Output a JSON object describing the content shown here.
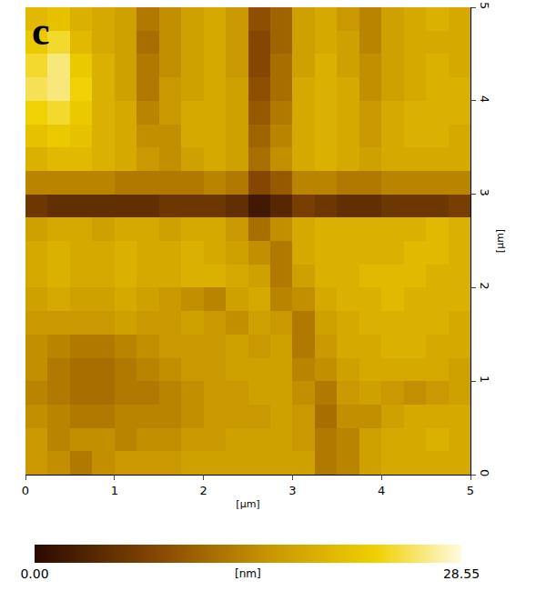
{
  "chart_data": {
    "type": "heatmap",
    "panel_label": "c",
    "xlabel": "[µm]",
    "ylabel": "[µm]",
    "x": [
      0.125,
      0.375,
      0.625,
      0.875,
      1.125,
      1.375,
      1.625,
      1.875,
      2.125,
      2.375,
      2.625,
      2.875,
      3.125,
      3.375,
      3.625,
      3.875,
      4.125,
      4.375,
      4.625,
      4.875
    ],
    "y": [
      0.125,
      0.375,
      0.625,
      0.875,
      1.125,
      1.375,
      1.625,
      1.875,
      2.125,
      2.375,
      2.625,
      2.875,
      3.125,
      3.375,
      3.625,
      3.875,
      4.125,
      4.375,
      4.625,
      4.875
    ],
    "z": [
      [
        16,
        15,
        13,
        15,
        16,
        16,
        16,
        17,
        17,
        17,
        17,
        17,
        17,
        13,
        14,
        17,
        18,
        18,
        18,
        18
      ],
      [
        16,
        14,
        15,
        15,
        14,
        15,
        15,
        16,
        16,
        17,
        17,
        17,
        16,
        13,
        14,
        17,
        18,
        18,
        19,
        18
      ],
      [
        15,
        14,
        13,
        13,
        14,
        14,
        14,
        15,
        16,
        16,
        16,
        17,
        16,
        12,
        15,
        15,
        17,
        18,
        18,
        18
      ],
      [
        14,
        13,
        12,
        12,
        13,
        13,
        14,
        15,
        16,
        16,
        17,
        17,
        15,
        13,
        16,
        17,
        16,
        15,
        16,
        17
      ],
      [
        15,
        13,
        12,
        12,
        13,
        14,
        15,
        16,
        16,
        17,
        17,
        17,
        14,
        15,
        17,
        18,
        18,
        18,
        18,
        17
      ],
      [
        15,
        14,
        13,
        13,
        14,
        15,
        16,
        16,
        16,
        17,
        16,
        17,
        13,
        16,
        18,
        18,
        19,
        19,
        18,
        18
      ],
      [
        16,
        16,
        16,
        16,
        17,
        16,
        16,
        17,
        16,
        15,
        17,
        16,
        13,
        17,
        18,
        19,
        19,
        19,
        19,
        18
      ],
      [
        17,
        18,
        17,
        17,
        18,
        17,
        16,
        15,
        14,
        17,
        18,
        14,
        15,
        18,
        19,
        19,
        20,
        19,
        19,
        19
      ],
      [
        18,
        19,
        18,
        18,
        19,
        18,
        18,
        19,
        19,
        18,
        17,
        13,
        17,
        19,
        19,
        20,
        20,
        20,
        19,
        19
      ],
      [
        18,
        19,
        18,
        18,
        19,
        18,
        18,
        19,
        18,
        17,
        15,
        13,
        18,
        19,
        19,
        19,
        19,
        20,
        20,
        19
      ],
      [
        17,
        18,
        18,
        17,
        18,
        18,
        17,
        18,
        18,
        16,
        12,
        15,
        18,
        19,
        19,
        19,
        19,
        19,
        20,
        19
      ],
      [
        6,
        5,
        5,
        5,
        5,
        5,
        6,
        6,
        6,
        5,
        2,
        4,
        7,
        6,
        5,
        5,
        6,
        6,
        6,
        7
      ],
      [
        14,
        14,
        14,
        14,
        13,
        13,
        13,
        13,
        14,
        13,
        8,
        10,
        14,
        14,
        13,
        13,
        14,
        14,
        14,
        14
      ],
      [
        19,
        20,
        20,
        19,
        18,
        16,
        15,
        17,
        18,
        17,
        12,
        15,
        18,
        19,
        18,
        17,
        18,
        18,
        18,
        18
      ],
      [
        21,
        22,
        21,
        19,
        18,
        15,
        15,
        18,
        18,
        17,
        11,
        14,
        18,
        19,
        18,
        16,
        18,
        19,
        19,
        18
      ],
      [
        23,
        24,
        22,
        19,
        18,
        14,
        16,
        18,
        18,
        17,
        10,
        13,
        18,
        19,
        18,
        16,
        18,
        19,
        19,
        19
      ],
      [
        25,
        26,
        23,
        19,
        17,
        13,
        16,
        17,
        18,
        17,
        9,
        12,
        18,
        19,
        18,
        15,
        17,
        18,
        19,
        19
      ],
      [
        24,
        26,
        22,
        19,
        17,
        13,
        15,
        17,
        18,
        16,
        8,
        12,
        17,
        19,
        17,
        15,
        17,
        18,
        19,
        18
      ],
      [
        22,
        24,
        20,
        18,
        17,
        12,
        15,
        17,
        18,
        16,
        8,
        11,
        17,
        18,
        17,
        14,
        17,
        18,
        18,
        18
      ],
      [
        20,
        21,
        19,
        18,
        17,
        13,
        15,
        17,
        18,
        16,
        9,
        11,
        17,
        18,
        16,
        14,
        17,
        18,
        19,
        18
      ]
    ],
    "xlim": [
      0,
      5
    ],
    "ylim": [
      0,
      5
    ],
    "xticks": [
      0,
      1,
      2,
      3,
      4,
      5
    ],
    "yticks": [
      0,
      1,
      2,
      3,
      4,
      5
    ],
    "colorbar": {
      "title": "[nm]",
      "range": [
        0,
        28.55
      ],
      "ticks": [
        {
          "value": 0,
          "label": "0.00"
        },
        28.55
      ]
    }
  }
}
